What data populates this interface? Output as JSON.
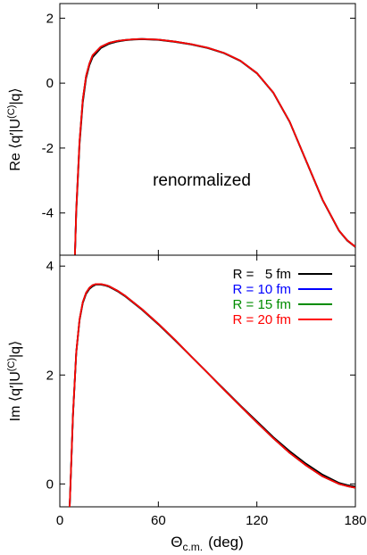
{
  "chart_data": [
    {
      "type": "line",
      "panel": "top",
      "ylabel_prefix": "Re",
      "ylabel_matrix": "⟨q′|U",
      "ylabel_sup": "(C)",
      "ylabel_suffix": "|q⟩",
      "annotation": "renormalized",
      "xlim": [
        0,
        180
      ],
      "ylim": [
        -5.3,
        2.45
      ],
      "xticks": [
        0,
        60,
        120,
        180
      ],
      "yticks": [
        2,
        0,
        -2,
        -4
      ],
      "ytick_labels": [
        "2",
        "0",
        "-2",
        "-4"
      ],
      "grid": false,
      "x": [
        9.2,
        10,
        12,
        14,
        16,
        18,
        20,
        25,
        30,
        35,
        40,
        45,
        50,
        55,
        60,
        70,
        80,
        90,
        100,
        110,
        120,
        130,
        140,
        150,
        160,
        170,
        175,
        180
      ],
      "series": [
        {
          "name": "R =   5 fm",
          "color": "#000000",
          "values": [
            -5.3,
            -4.0,
            -1.9,
            -0.6,
            0.15,
            0.55,
            0.8,
            1.08,
            1.21,
            1.28,
            1.32,
            1.34,
            1.35,
            1.34,
            1.33,
            1.27,
            1.19,
            1.08,
            0.92,
            0.68,
            0.3,
            -0.3,
            -1.2,
            -2.4,
            -3.6,
            -4.55,
            -4.85,
            -5.05
          ]
        },
        {
          "name": "R = 10 fm",
          "color": "#0000ff",
          "values": [
            -5.3,
            -3.9,
            -1.8,
            -0.5,
            0.22,
            0.6,
            0.86,
            1.12,
            1.24,
            1.3,
            1.33,
            1.35,
            1.36,
            1.35,
            1.34,
            1.28,
            1.2,
            1.09,
            0.93,
            0.69,
            0.31,
            -0.29,
            -1.19,
            -2.39,
            -3.59,
            -4.54,
            -4.84,
            -5.04
          ]
        },
        {
          "name": "R = 15 fm",
          "color": "#008c00",
          "values": [
            -5.3,
            -3.9,
            -1.8,
            -0.5,
            0.22,
            0.6,
            0.86,
            1.12,
            1.24,
            1.3,
            1.33,
            1.35,
            1.36,
            1.35,
            1.34,
            1.28,
            1.2,
            1.09,
            0.93,
            0.69,
            0.31,
            -0.29,
            -1.19,
            -2.39,
            -3.59,
            -4.54,
            -4.84,
            -5.04
          ]
        },
        {
          "name": "R = 20 fm",
          "color": "#ff0000",
          "values": [
            -5.3,
            -3.9,
            -1.8,
            -0.5,
            0.22,
            0.6,
            0.86,
            1.12,
            1.24,
            1.3,
            1.33,
            1.35,
            1.36,
            1.35,
            1.34,
            1.28,
            1.2,
            1.09,
            0.93,
            0.69,
            0.31,
            -0.29,
            -1.19,
            -2.39,
            -3.59,
            -4.54,
            -4.84,
            -5.04
          ]
        }
      ]
    },
    {
      "type": "line",
      "panel": "bottom",
      "ylabel_prefix": "Im",
      "ylabel_matrix": "⟨q′|U",
      "ylabel_sup": "(C)",
      "ylabel_suffix": "|q⟩",
      "xlabel_symbol": "Θ",
      "xlabel_sub": "c.m.",
      "xlabel_unit": "(deg)",
      "xlim": [
        0,
        180
      ],
      "ylim": [
        -0.42,
        4.2
      ],
      "xticks": [
        0,
        60,
        120,
        180
      ],
      "xtick_labels": [
        "0",
        "60",
        "120",
        "180"
      ],
      "yticks": [
        4,
        2,
        0
      ],
      "ytick_labels": [
        "4",
        "2",
        "0"
      ],
      "grid": false,
      "legend_position": "top-right",
      "x": [
        6.0,
        7,
        8,
        10,
        12,
        14,
        16,
        18,
        20,
        22,
        25,
        28,
        30,
        35,
        40,
        50,
        60,
        70,
        80,
        90,
        100,
        110,
        120,
        130,
        140,
        150,
        160,
        170,
        175,
        180
      ],
      "series": [
        {
          "name": "R =   5 fm",
          "color": "#000000",
          "values": [
            -0.42,
            0.4,
            1.25,
            2.4,
            3.0,
            3.32,
            3.49,
            3.58,
            3.63,
            3.66,
            3.66,
            3.64,
            3.62,
            3.54,
            3.44,
            3.2,
            2.93,
            2.64,
            2.34,
            2.04,
            1.74,
            1.44,
            1.15,
            0.86,
            0.6,
            0.37,
            0.17,
            0.02,
            -0.02,
            -0.05
          ]
        },
        {
          "name": "R = 10 fm",
          "color": "#0000ff",
          "values": [
            -0.42,
            0.42,
            1.27,
            2.42,
            3.02,
            3.34,
            3.51,
            3.6,
            3.65,
            3.67,
            3.67,
            3.65,
            3.63,
            3.55,
            3.45,
            3.21,
            2.94,
            2.65,
            2.34,
            2.04,
            1.73,
            1.43,
            1.13,
            0.84,
            0.57,
            0.34,
            0.14,
            0.0,
            -0.04,
            -0.07
          ]
        },
        {
          "name": "R = 15 fm",
          "color": "#008c00",
          "values": [
            -0.42,
            0.42,
            1.27,
            2.42,
            3.02,
            3.34,
            3.51,
            3.6,
            3.65,
            3.67,
            3.67,
            3.65,
            3.63,
            3.55,
            3.45,
            3.21,
            2.94,
            2.65,
            2.34,
            2.04,
            1.73,
            1.43,
            1.13,
            0.84,
            0.57,
            0.34,
            0.14,
            0.0,
            -0.04,
            -0.07
          ]
        },
        {
          "name": "R = 20 fm",
          "color": "#ff0000",
          "values": [
            -0.42,
            0.42,
            1.27,
            2.42,
            3.02,
            3.34,
            3.51,
            3.6,
            3.65,
            3.67,
            3.67,
            3.65,
            3.63,
            3.55,
            3.45,
            3.21,
            2.94,
            2.65,
            2.34,
            2.04,
            1.73,
            1.43,
            1.13,
            0.84,
            0.57,
            0.34,
            0.14,
            0.0,
            -0.04,
            -0.07
          ]
        }
      ]
    }
  ]
}
